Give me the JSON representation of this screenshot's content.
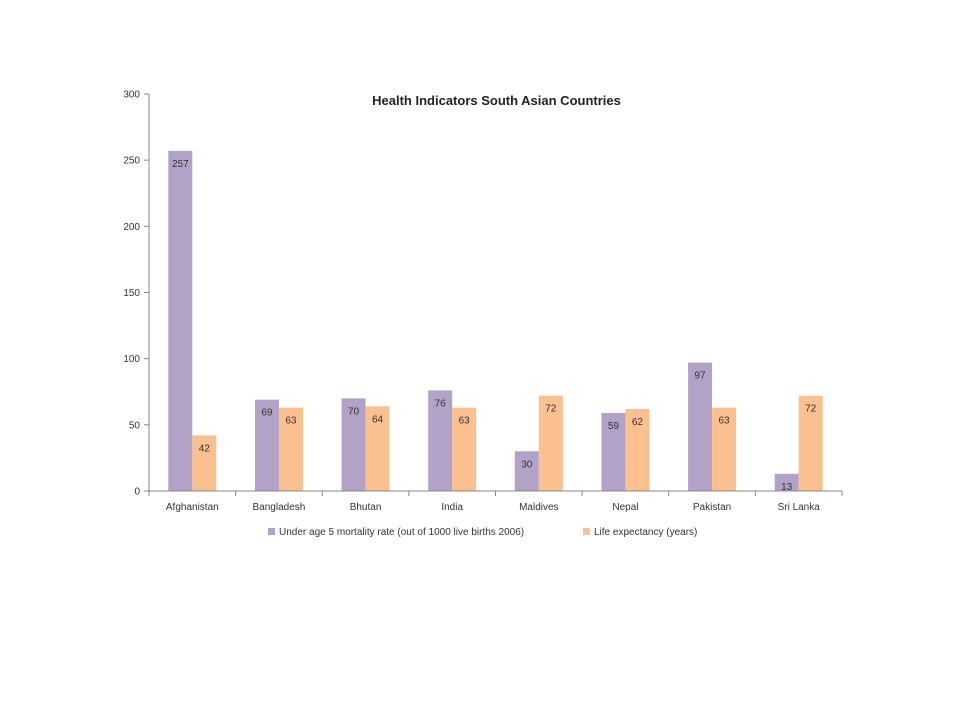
{
  "chart_data": {
    "type": "bar",
    "title": "Health Indicators South Asian Countries",
    "xlabel": "",
    "ylabel": "",
    "ylim": [
      0,
      300
    ],
    "yticks": [
      0,
      50,
      100,
      150,
      200,
      250,
      300
    ],
    "categories": [
      "Afghanistan",
      "Bangladesh",
      "Bhutan",
      "India",
      "Maldives",
      "Nepal",
      "Pakistan",
      "Sri Lanka"
    ],
    "series": [
      {
        "name": "Under age 5 mortality rate (out of 1000 live births 2006)",
        "color": "#b3a2c7",
        "values": [
          257,
          69,
          70,
          76,
          30,
          59,
          97,
          13
        ]
      },
      {
        "name": "Life expectancy (years)",
        "color": "#fac090",
        "values": [
          42,
          63,
          64,
          63,
          72,
          62,
          63,
          72
        ]
      }
    ],
    "data_labels": true,
    "grid": false,
    "legend_position": "bottom"
  }
}
